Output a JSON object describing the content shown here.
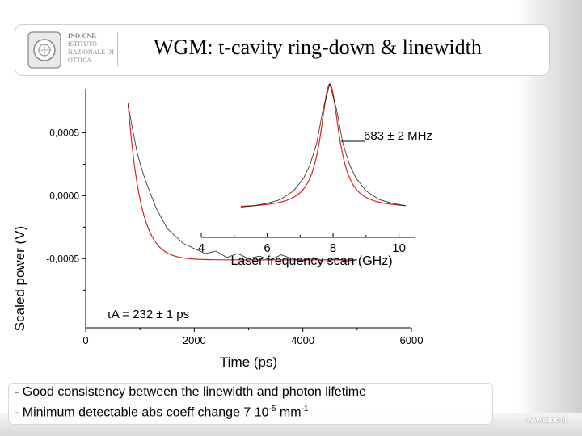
{
  "header": {
    "title": "WGM: t-cavity ring-down & linewidth",
    "logo_lines": [
      "INO-CNR",
      "ISTITUTO",
      "NAZIONALE DI",
      "OTTICA"
    ]
  },
  "footer": {
    "url": "www.ino.it",
    "note1": "- Good consistency between the linewidth and photon lifetime",
    "note2_prefix": "- Minimum detectable abs coeff change 7 10",
    "note2_exp": "-5",
    "note2_unit": " mm",
    "note2_unit_exp": "-1"
  },
  "chart_data": [
    {
      "type": "line",
      "name": "ring-down",
      "xlabel": "Time (ps)",
      "ylabel": "Scaled power (V)",
      "xlim": [
        0,
        6000
      ],
      "ylim": [
        -0.00105,
        0.00085
      ],
      "x_ticks": [
        0,
        2000,
        4000,
        6000
      ],
      "x_tick_labels": [
        "0",
        "2000",
        "4000",
        "6000"
      ],
      "y_ticks": [
        0.0005,
        0.0,
        -0.0005
      ],
      "y_tick_labels": [
        "0,0005",
        "0,0000",
        "-0,0005"
      ],
      "annotation": "τA = 232 ± 1 ps",
      "fit": {
        "tau_ps": 232,
        "t0_ps": 780,
        "amplitude": 0.00125,
        "offset": -0.00051
      },
      "x": [
        780,
        800,
        850,
        900,
        950,
        1000,
        1100,
        1200,
        1300,
        1400,
        1500,
        1600,
        1800,
        2000,
        2200,
        2400,
        2600,
        2800,
        3000,
        3200,
        3400,
        3600,
        3800,
        4000,
        4200,
        4400,
        4600,
        4800,
        5000
      ],
      "y": [
        0.00072,
        0.00068,
        0.00056,
        0.00045,
        0.00034,
        0.00026,
        0.00012,
        1e-05,
        -0.0001,
        -0.00018,
        -0.00026,
        -0.0003,
        -0.00038,
        -0.00042,
        -0.00046,
        -0.00044,
        -0.00049,
        -0.00046,
        -0.0005,
        -0.00048,
        -0.00051,
        -0.00047,
        -0.0005,
        -0.00052,
        -0.00049,
        -0.00053,
        -0.0005,
        -0.00052,
        -0.00051
      ]
    },
    {
      "type": "line",
      "name": "linewidth-inset",
      "xlabel": "Laser frequency scan (GHz)",
      "xlim": [
        4,
        10.5
      ],
      "x_ticks": [
        4,
        6,
        8,
        10
      ],
      "x_tick_labels": [
        "4",
        "6",
        "8",
        "10"
      ],
      "annotation": "683 ± 2 MHz",
      "fit": {
        "center_ghz": 7.9,
        "fwhm_ghz": 0.683,
        "peak": 1.0
      },
      "x": [
        5.2,
        5.6,
        6.0,
        6.4,
        6.8,
        7.1,
        7.3,
        7.5,
        7.7,
        7.9,
        8.1,
        8.3,
        8.5,
        8.7,
        9.0,
        9.4,
        9.8,
        10.2
      ],
      "y": [
        0.01,
        0.02,
        0.04,
        0.07,
        0.14,
        0.24,
        0.35,
        0.52,
        0.8,
        1.0,
        0.8,
        0.52,
        0.35,
        0.24,
        0.14,
        0.07,
        0.04,
        0.02
      ]
    }
  ],
  "colors": {
    "data": "#000000",
    "fit": "#e02020",
    "axis": "#000000"
  }
}
